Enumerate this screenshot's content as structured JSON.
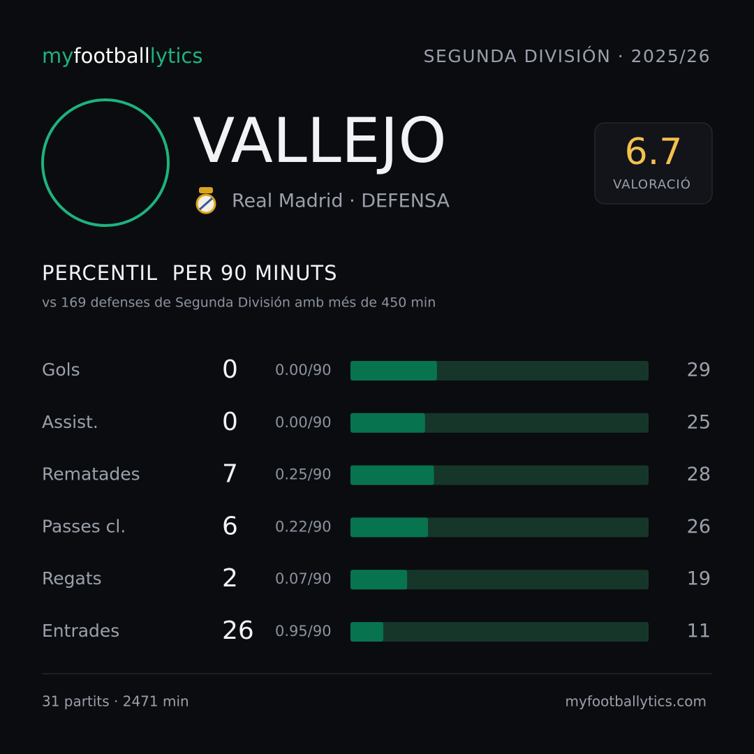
{
  "header": {
    "brand": [
      "my",
      "football",
      "lytics"
    ],
    "competition": "SEGUNDA DIVISIÓN · 2025/26"
  },
  "player": {
    "name": "VALLEJO",
    "team": "Real Madrid · DEFENSA",
    "rating": 6.7,
    "rating_label": "VALORACIÓ"
  },
  "section": {
    "title": "PERCENTIL  PER 90 MINUTS",
    "subtitle": "vs 169 defenses de Segunda División amb més de 450 min"
  },
  "stats": {
    "xlim": [
      0,
      100
    ],
    "rows": [
      {
        "label": "Gols",
        "total": 0,
        "per90": "0.00/90",
        "percentile": 29
      },
      {
        "label": "Assist.",
        "total": 0,
        "per90": "0.00/90",
        "percentile": 25
      },
      {
        "label": "Rematades",
        "total": 7,
        "per90": "0.25/90",
        "percentile": 28
      },
      {
        "label": "Passes cl.",
        "total": 6,
        "per90": "0.22/90",
        "percentile": 26
      },
      {
        "label": "Regats",
        "total": 2,
        "per90": "0.07/90",
        "percentile": 19
      },
      {
        "label": "Entrades",
        "total": 26,
        "per90": "0.95/90",
        "percentile": 11
      }
    ]
  },
  "footer": {
    "left": "31 partits · 2471 min",
    "right": "myfootballytics.com"
  }
}
